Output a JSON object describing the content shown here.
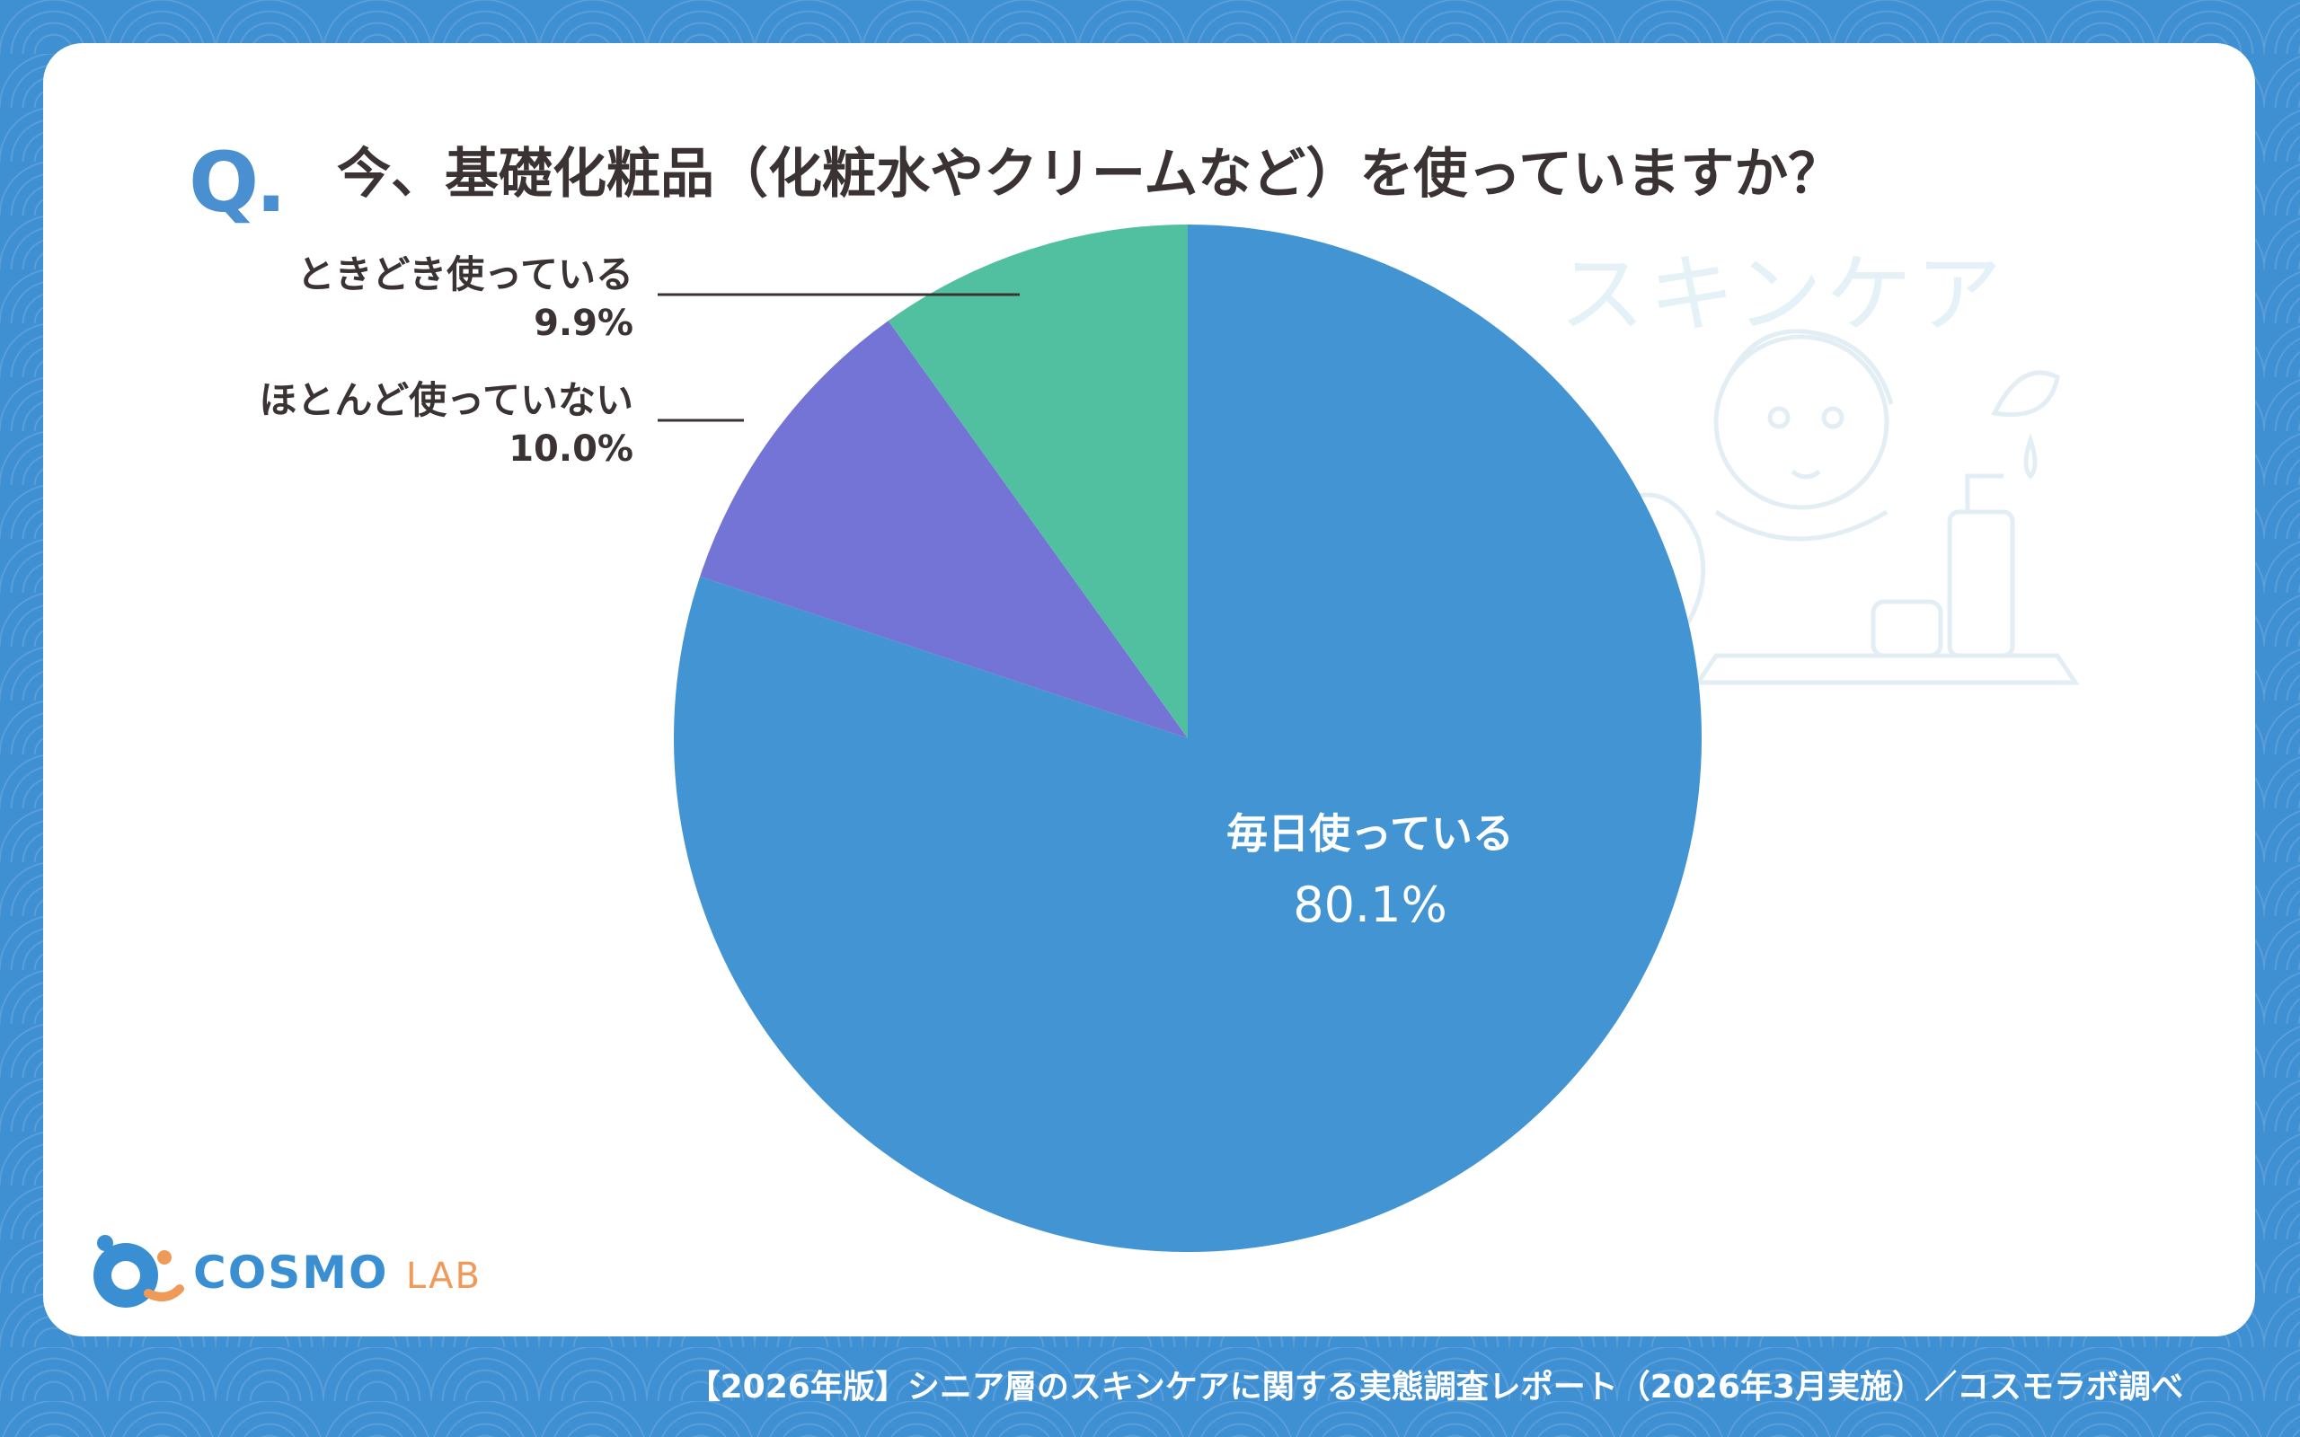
{
  "question": {
    "mark": "Q.",
    "text": "今、基礎化粧品（化粧水やクリームなど）を使っていますか？"
  },
  "decoration": {
    "text": "スキンケア"
  },
  "chart_data": {
    "type": "pie",
    "title": "今、基礎化粧品（化粧水やクリームなど）を使っていますか？",
    "slices": [
      {
        "label": "毎日使っている",
        "value": 80.1,
        "display": "80.1%",
        "color": "#4394d3"
      },
      {
        "label": "ほとんど使っていない",
        "value": 10.0,
        "display": "10.0%",
        "color": "#7474d6"
      },
      {
        "label": "ときどき使っている",
        "value": 9.9,
        "display": "9.9%",
        "color": "#51c0a0"
      }
    ],
    "start": "12 o'clock",
    "direction": "clockwise"
  },
  "logo": {
    "cosmo": "COSMO",
    "lab": "LAB"
  },
  "footer": "【2026年版】シニア層のスキンケアに関する実態調査レポート（2026年3月実施）／コスモラボ調べ"
}
